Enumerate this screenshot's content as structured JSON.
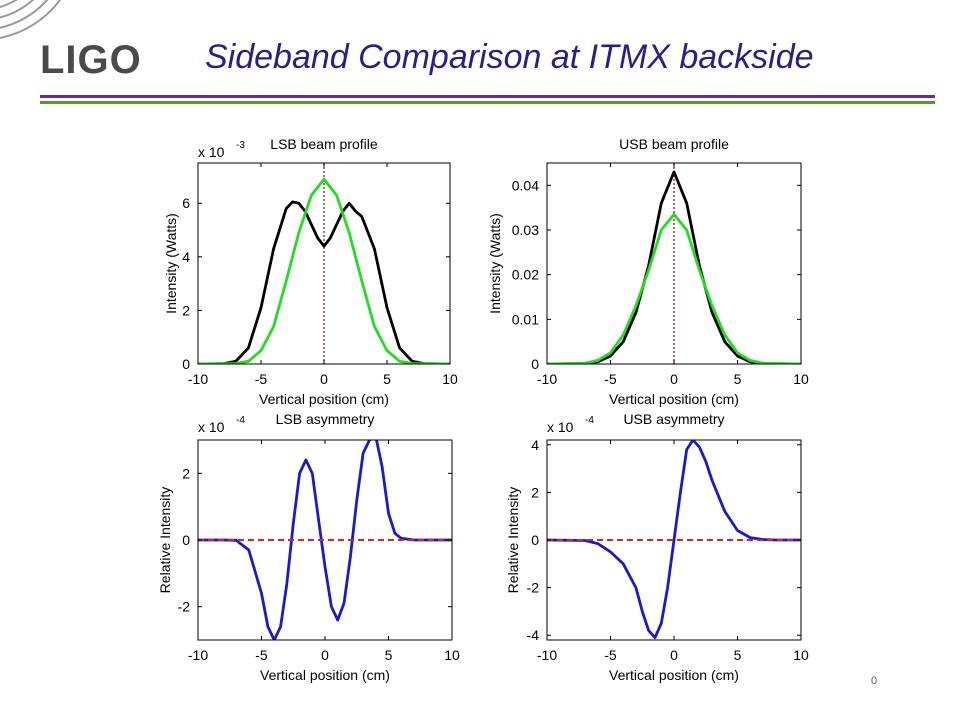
{
  "header": {
    "logo": "LIGO",
    "title": "Sideband Comparison at ITMX backside"
  },
  "footer": {
    "page_number": "0"
  },
  "colors": {
    "title": "#2a1f8a",
    "rule_purple": "#6a2c8c",
    "rule_green": "#5a9a2a",
    "black_series": "#000000",
    "green_series": "#22dd22",
    "blue_series": "#1a1acc",
    "red_dashed": "#dd2222"
  },
  "chart_data": [
    {
      "id": "lsb_profile",
      "type": "line",
      "title": "LSB beam profile",
      "xlabel": "Vertical position (cm)",
      "ylabel": "Intensity (Watts)",
      "multiplier": "x 10",
      "exponent": "-3",
      "xlim": [
        -10,
        10
      ],
      "ylim": [
        0,
        0.0075
      ],
      "xticks": [
        -10,
        -5,
        0,
        5,
        10
      ],
      "xtick_labels": [
        "-10",
        "-5",
        "0",
        "5",
        "10"
      ],
      "yticks": [
        0,
        0.002,
        0.004,
        0.006
      ],
      "ytick_labels": [
        "0",
        "2",
        "4",
        "6"
      ],
      "vline_x": 0,
      "series": [
        {
          "color": "#000000",
          "style": "solid",
          "x": [
            -10,
            -8,
            -7,
            -6,
            -5,
            -4,
            -3,
            -2.5,
            -2,
            -1.5,
            -1,
            -0.5,
            0,
            0.5,
            1,
            1.5,
            2,
            2.5,
            3,
            4,
            5,
            6,
            7,
            8,
            10
          ],
          "y": [
            0,
            1e-05,
            0.0001,
            0.0006,
            0.0021,
            0.0043,
            0.0058,
            0.00605,
            0.006,
            0.0057,
            0.0052,
            0.0047,
            0.0044,
            0.0047,
            0.0052,
            0.0057,
            0.006,
            0.0057,
            0.0055,
            0.0043,
            0.0021,
            0.0006,
            0.0001,
            1e-05,
            0
          ]
        },
        {
          "color": "#22dd22",
          "style": "solid",
          "x": [
            -10,
            -7,
            -6,
            -5,
            -4,
            -3,
            -2,
            -1,
            0,
            1,
            2,
            3,
            4,
            5,
            6,
            7,
            10
          ],
          "y": [
            0,
            2e-05,
            0.0001,
            0.0005,
            0.0014,
            0.0031,
            0.0049,
            0.0063,
            0.0069,
            0.0063,
            0.0049,
            0.0031,
            0.0014,
            0.0005,
            0.0001,
            2e-05,
            0
          ]
        }
      ]
    },
    {
      "id": "usb_profile",
      "type": "line",
      "title": "USB beam profile",
      "xlabel": "Vertical position (cm)",
      "ylabel": "Intensity (Watts)",
      "xlim": [
        -10,
        10
      ],
      "ylim": [
        0,
        0.045
      ],
      "xticks": [
        -10,
        -5,
        0,
        5,
        10
      ],
      "xtick_labels": [
        "-10",
        "-5",
        "0",
        "5",
        "10"
      ],
      "yticks": [
        0,
        0.01,
        0.02,
        0.03,
        0.04
      ],
      "ytick_labels": [
        "0",
        "0.01",
        "0.02",
        "0.03",
        "0.04"
      ],
      "vline_x": 0,
      "series": [
        {
          "color": "#000000",
          "style": "solid",
          "x": [
            -10,
            -7,
            -6,
            -5,
            -4,
            -3,
            -2,
            -1,
            0,
            1,
            2,
            3,
            4,
            5,
            6,
            7,
            10
          ],
          "y": [
            0,
            0.0001,
            0.0005,
            0.0018,
            0.005,
            0.0115,
            0.022,
            0.036,
            0.043,
            0.036,
            0.022,
            0.0115,
            0.005,
            0.0018,
            0.0005,
            0.0001,
            0
          ]
        },
        {
          "color": "#22dd22",
          "style": "solid",
          "x": [
            -10,
            -7,
            -6,
            -5,
            -4,
            -3,
            -2,
            -1,
            0,
            1,
            2,
            3,
            4,
            5,
            6,
            7,
            10
          ],
          "y": [
            0,
            0.0002,
            0.0008,
            0.0025,
            0.0065,
            0.013,
            0.021,
            0.03,
            0.0335,
            0.03,
            0.021,
            0.013,
            0.0065,
            0.0025,
            0.0008,
            0.0002,
            0
          ]
        }
      ]
    },
    {
      "id": "lsb_asymmetry",
      "type": "line",
      "title": "LSB asymmetry",
      "xlabel": "Vertical position (cm)",
      "ylabel": "Relative Intensity",
      "multiplier": "x 10",
      "exponent": "-4",
      "xlim": [
        -10,
        10
      ],
      "ylim": [
        -0.0003,
        0.0003
      ],
      "xticks": [
        -10,
        -5,
        0,
        5,
        10
      ],
      "xtick_labels": [
        "-10",
        "-5",
        "0",
        "5",
        "10"
      ],
      "yticks": [
        -0.0002,
        0,
        0.0002
      ],
      "ytick_labels": [
        "-2",
        "0",
        "2"
      ],
      "hline_y": 0,
      "series": [
        {
          "color": "#1a1acc",
          "style": "solid",
          "x": [
            -10,
            -8,
            -7,
            -6,
            -5,
            -4.5,
            -4,
            -3.5,
            -3,
            -2.5,
            -2,
            -1.5,
            -1,
            -0.5,
            0,
            0.5,
            1,
            1.5,
            2,
            2.5,
            3,
            3.5,
            4,
            4.5,
            5,
            5.5,
            6,
            7,
            8,
            10
          ],
          "y": [
            0,
            0,
            -1e-06,
            -3e-05,
            -0.00016,
            -0.00026,
            -0.0003,
            -0.00026,
            -0.00013,
            5e-05,
            0.0002,
            0.00024,
            0.0002,
            6e-05,
            -8e-05,
            -0.0002,
            -0.00024,
            -0.00019,
            -5e-05,
            0.00012,
            0.00026,
            0.0003,
            0.00031,
            0.00022,
            8e-05,
            2e-05,
            5e-06,
            0,
            0,
            0
          ]
        },
        {
          "color": "#dd2222",
          "style": "dashed",
          "x": [
            -10,
            10
          ],
          "y": [
            0,
            0
          ]
        }
      ]
    },
    {
      "id": "usb_asymmetry",
      "type": "line",
      "title": "USB asymmetry",
      "xlabel": "Vertical position (cm)",
      "ylabel": "Relative Intensity",
      "multiplier": "x 10",
      "exponent": "-4",
      "xlim": [
        -10,
        10
      ],
      "ylim": [
        -0.00042,
        0.00042
      ],
      "xticks": [
        -10,
        -5,
        0,
        5,
        10
      ],
      "xtick_labels": [
        "-10",
        "-5",
        "0",
        "5",
        "10"
      ],
      "yticks": [
        -0.0004,
        -0.0002,
        0,
        0.0002,
        0.0004
      ],
      "ytick_labels": [
        "-4",
        "-2",
        "0",
        "2",
        "4"
      ],
      "hline_y": 0,
      "series": [
        {
          "color": "#1a1acc",
          "style": "solid",
          "x": [
            -10,
            -7,
            -6,
            -5,
            -4,
            -3,
            -2.5,
            -2,
            -1.5,
            -1,
            -0.5,
            0,
            0.5,
            1,
            1.5,
            2,
            2.5,
            3,
            4,
            5,
            6,
            7,
            8,
            10
          ],
          "y": [
            0,
            -2e-06,
            -1.5e-05,
            -5e-05,
            -0.0001,
            -0.0002,
            -0.0003,
            -0.00038,
            -0.00041,
            -0.00035,
            -0.0002,
            0,
            0.0002,
            0.00038,
            0.00042,
            0.00039,
            0.00033,
            0.00025,
            0.00012,
            4e-05,
            1e-05,
            2e-06,
            0,
            0
          ]
        },
        {
          "color": "#dd2222",
          "style": "dashed",
          "x": [
            -10,
            10
          ],
          "y": [
            0,
            0
          ]
        }
      ]
    }
  ]
}
